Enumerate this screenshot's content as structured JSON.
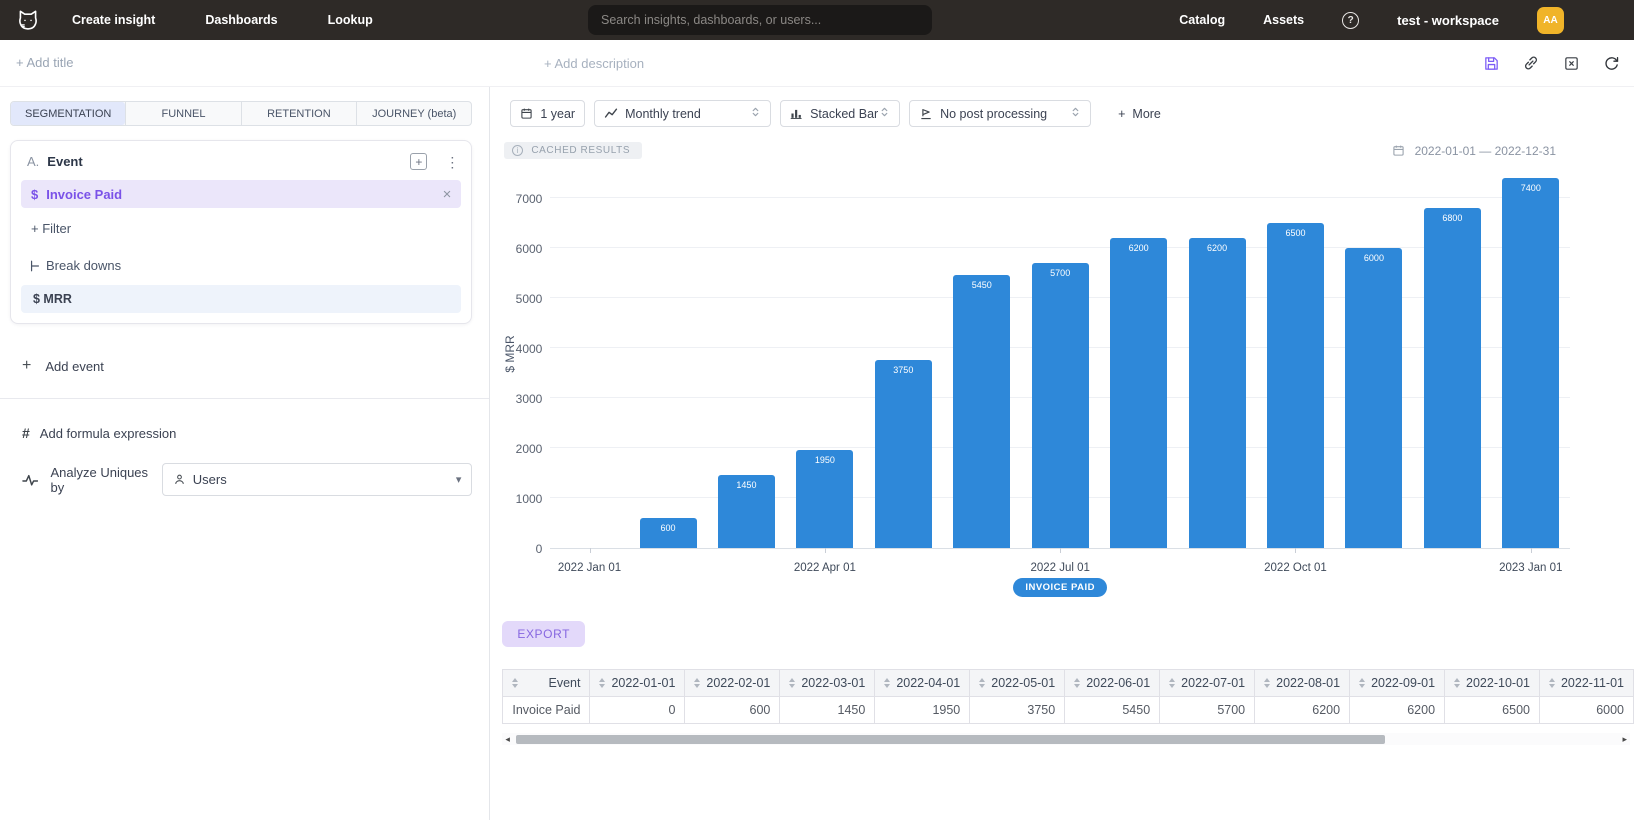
{
  "navbar": {
    "items": [
      "Create insight",
      "Dashboards",
      "Lookup"
    ],
    "search_placeholder": "Search insights, dashboards, or users...",
    "right_items": [
      "Catalog",
      "Assets"
    ],
    "help_glyph": "?",
    "workspace": "test - workspace",
    "avatar_initials": "AA"
  },
  "titlebar": {
    "add_title": "+ Add title",
    "add_description": "+ Add description"
  },
  "tabs": {
    "segmentation": "SEGMENTATION",
    "funnel": "FUNNEL",
    "retention": "RETENTION",
    "journey": "JOURNEY (beta)"
  },
  "builder": {
    "group_label": "A.",
    "group_title": "Event",
    "plus_box": "+",
    "kebab": "⋮",
    "event_prefix": "$",
    "event_name": "Invoice Paid",
    "event_close": "×",
    "filter_label": "+ Filter",
    "breakdowns_label": "Break downs",
    "measure_label": "$ MRR",
    "add_event_plus": "+",
    "add_event_label": "Add event",
    "formula_glyph": "#",
    "add_formula_label": "Add formula expression",
    "analyze_label": "Analyze Uniques by",
    "analyze_value": "Users",
    "analyze_caret": "▾"
  },
  "toolbar": {
    "date_button": "1 year",
    "trend": "Monthly trend",
    "chart_type": "Stacked Bar",
    "post_processing": "No post processing",
    "more_plus": "+",
    "more_label": "More"
  },
  "results": {
    "cached_badge": "CACHED RESULTS",
    "cached_info_glyph": "i",
    "date_range": "2022-01-01 — 2022-12-31",
    "export_label": "EXPORT"
  },
  "chart_data": {
    "type": "bar",
    "title": "",
    "xlabel": "",
    "ylabel": "$ MRR",
    "legend": "INVOICE PAID",
    "legend_position": "bottom",
    "grid": true,
    "bar_color": "#2e88d9",
    "categories": [
      "2022-01-01",
      "2022-02-01",
      "2022-03-01",
      "2022-04-01",
      "2022-05-01",
      "2022-06-01",
      "2022-07-01",
      "2022-08-01",
      "2022-09-01",
      "2022-10-01",
      "2022-11-01",
      "2022-12-01",
      "2023-01-01"
    ],
    "series": [
      {
        "name": "Invoice Paid",
        "values": [
          0,
          600,
          1450,
          1950,
          3750,
          5450,
          5700,
          6200,
          6200,
          6500,
          6000,
          6800,
          7400
        ]
      }
    ],
    "y_ticks": [
      0,
      1000,
      2000,
      3000,
      4000,
      5000,
      6000,
      7000
    ],
    "ylim": [
      0,
      7520
    ],
    "x_ticks": [
      {
        "index": 0,
        "label": "2022 Jan 01"
      },
      {
        "index": 3,
        "label": "2022 Apr 01"
      },
      {
        "index": 6,
        "label": "2022 Jul 01"
      },
      {
        "index": 9,
        "label": "2022 Oct 01"
      },
      {
        "index": 12,
        "label": "2023 Jan 01"
      }
    ]
  },
  "table": {
    "headers": [
      "Event",
      "2022-01-01",
      "2022-02-01",
      "2022-03-01",
      "2022-04-01",
      "2022-05-01",
      "2022-06-01",
      "2022-07-01",
      "2022-08-01",
      "2022-09-01",
      "2022-10-01",
      "2022-11-01"
    ],
    "rows": [
      {
        "event": "Invoice Paid",
        "values": [
          0,
          600,
          1450,
          1950,
          3750,
          5450,
          5700,
          6200,
          6200,
          6500,
          6000
        ]
      }
    ]
  },
  "colors": {
    "accent_purple": "#7a52e8",
    "bar_blue": "#2e88d9",
    "avatar_orange": "#f0b429",
    "navbar_bg": "#2e2a27"
  }
}
